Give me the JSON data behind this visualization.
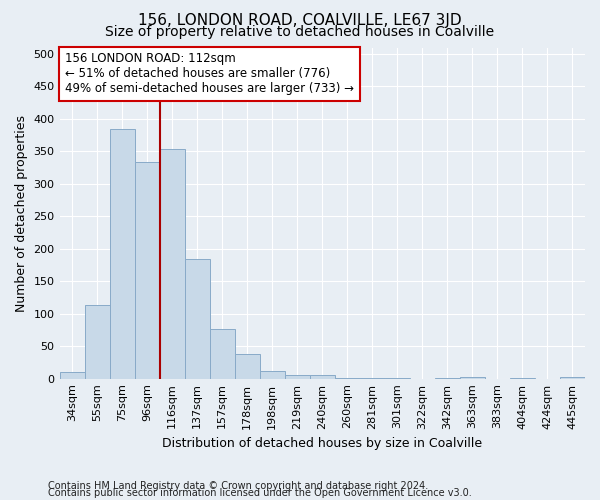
{
  "title": "156, LONDON ROAD, COALVILLE, LE67 3JD",
  "subtitle": "Size of property relative to detached houses in Coalville",
  "xlabel": "Distribution of detached houses by size in Coalville",
  "ylabel": "Number of detached properties",
  "categories": [
    "34sqm",
    "55sqm",
    "75sqm",
    "96sqm",
    "116sqm",
    "137sqm",
    "157sqm",
    "178sqm",
    "198sqm",
    "219sqm",
    "240sqm",
    "260sqm",
    "281sqm",
    "301sqm",
    "322sqm",
    "342sqm",
    "363sqm",
    "383sqm",
    "404sqm",
    "424sqm",
    "445sqm"
  ],
  "values": [
    10,
    113,
    385,
    333,
    354,
    185,
    76,
    38,
    12,
    6,
    5,
    1,
    1,
    1,
    0,
    1,
    3,
    0,
    1,
    0,
    3
  ],
  "bar_color": "#c8d9e8",
  "bar_edge_color": "#88aac8",
  "vline_color": "#aa0000",
  "vline_x_index": 3,
  "annotation_line1": "156 LONDON ROAD: 112sqm",
  "annotation_line2": "← 51% of detached houses are smaller (776)",
  "annotation_line3": "49% of semi-detached houses are larger (733) →",
  "annotation_box_color": "#ffffff",
  "annotation_box_edge_color": "#cc0000",
  "ylim": [
    0,
    510
  ],
  "yticks": [
    0,
    50,
    100,
    150,
    200,
    250,
    300,
    350,
    400,
    450,
    500
  ],
  "footer1": "Contains HM Land Registry data © Crown copyright and database right 2024.",
  "footer2": "Contains public sector information licensed under the Open Government Licence v3.0.",
  "bg_color": "#e8eef4",
  "plot_bg_color": "#e8eef4",
  "grid_color": "#ffffff",
  "title_fontsize": 11,
  "subtitle_fontsize": 10,
  "axis_label_fontsize": 9,
  "tick_fontsize": 8,
  "annotation_fontsize": 8.5,
  "footer_fontsize": 7
}
